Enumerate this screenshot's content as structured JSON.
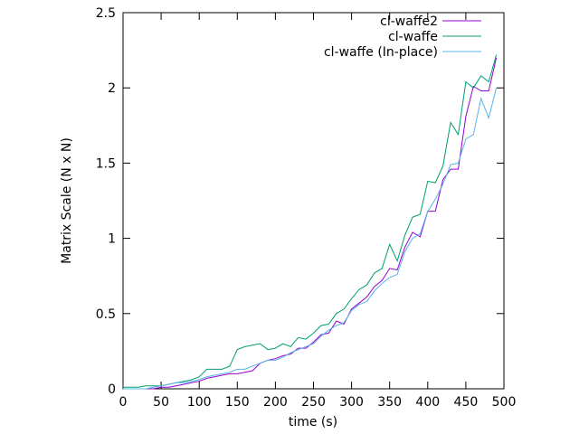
{
  "chart_data": {
    "type": "line",
    "title": "",
    "xlabel": "time (s)",
    "ylabel": "Matrix Scale (N x N)",
    "xlim": [
      0,
      500
    ],
    "ylim": [
      0,
      2.5
    ],
    "xticks": [
      0,
      50,
      100,
      150,
      200,
      250,
      300,
      350,
      400,
      450,
      500
    ],
    "yticks": [
      0,
      0.5,
      1,
      1.5,
      2,
      2.5
    ],
    "xtick_labels": [
      "0",
      "50",
      "100",
      "150",
      "200",
      "250",
      "300",
      "350",
      "400",
      "450",
      "500"
    ],
    "ytick_labels": [
      "0",
      "0.5",
      "1",
      "1.5",
      "2",
      "2.5"
    ],
    "grid": false,
    "legend_position": "top-right",
    "series": [
      {
        "name": "cl-waffe2",
        "color": "#9400d3",
        "x": [
          0,
          10,
          20,
          30,
          40,
          50,
          60,
          70,
          80,
          90,
          100,
          110,
          120,
          130,
          140,
          150,
          160,
          170,
          180,
          190,
          200,
          210,
          220,
          230,
          240,
          250,
          260,
          270,
          280,
          290,
          300,
          310,
          320,
          330,
          340,
          350,
          360,
          370,
          380,
          390,
          400,
          410,
          420,
          430,
          440,
          450,
          460,
          470,
          480,
          490
        ],
        "y": [
          0.0,
          0.0,
          0.0,
          0.0,
          0.0,
          0.01,
          0.01,
          0.02,
          0.03,
          0.04,
          0.05,
          0.07,
          0.08,
          0.09,
          0.1,
          0.1,
          0.11,
          0.12,
          0.17,
          0.19,
          0.2,
          0.22,
          0.23,
          0.27,
          0.27,
          0.31,
          0.36,
          0.37,
          0.45,
          0.43,
          0.53,
          0.57,
          0.61,
          0.68,
          0.72,
          0.8,
          0.79,
          0.94,
          1.04,
          1.01,
          1.18,
          1.18,
          1.39,
          1.46,
          1.46,
          1.81,
          2.01,
          1.98,
          1.98,
          2.2
        ]
      },
      {
        "name": "cl-waffe",
        "color": "#009e73",
        "x": [
          0,
          10,
          20,
          30,
          40,
          50,
          60,
          70,
          80,
          90,
          100,
          110,
          120,
          130,
          140,
          150,
          160,
          170,
          180,
          190,
          200,
          210,
          220,
          230,
          240,
          250,
          260,
          270,
          280,
          290,
          300,
          310,
          320,
          330,
          340,
          350,
          360,
          370,
          380,
          390,
          400,
          410,
          420,
          430,
          440,
          450,
          460,
          470,
          480,
          490
        ],
        "y": [
          0.01,
          0.01,
          0.01,
          0.02,
          0.02,
          0.02,
          0.03,
          0.04,
          0.05,
          0.06,
          0.08,
          0.13,
          0.13,
          0.13,
          0.15,
          0.26,
          0.28,
          0.29,
          0.3,
          0.26,
          0.27,
          0.3,
          0.28,
          0.34,
          0.33,
          0.37,
          0.42,
          0.43,
          0.5,
          0.53,
          0.6,
          0.66,
          0.69,
          0.77,
          0.8,
          0.96,
          0.85,
          1.02,
          1.14,
          1.16,
          1.38,
          1.37,
          1.48,
          1.77,
          1.69,
          2.04,
          2.0,
          2.08,
          2.04,
          2.22
        ]
      },
      {
        "name": "cl-waffe (In-place)",
        "color": "#56b4e9",
        "x": [
          0,
          10,
          20,
          30,
          40,
          50,
          60,
          70,
          80,
          90,
          100,
          110,
          120,
          130,
          140,
          150,
          160,
          170,
          180,
          190,
          200,
          210,
          220,
          230,
          240,
          250,
          260,
          270,
          280,
          290,
          300,
          310,
          320,
          330,
          340,
          350,
          360,
          370,
          380,
          390,
          400,
          410,
          420,
          430,
          440,
          450,
          460,
          470,
          480,
          490
        ],
        "y": [
          0.0,
          0.0,
          0.0,
          0.0,
          0.01,
          0.02,
          0.03,
          0.04,
          0.04,
          0.05,
          0.06,
          0.08,
          0.09,
          0.1,
          0.11,
          0.13,
          0.13,
          0.15,
          0.17,
          0.19,
          0.19,
          0.21,
          0.24,
          0.26,
          0.28,
          0.3,
          0.35,
          0.39,
          0.42,
          0.44,
          0.52,
          0.56,
          0.58,
          0.65,
          0.7,
          0.74,
          0.76,
          0.91,
          1.0,
          1.03,
          1.18,
          1.26,
          1.36,
          1.49,
          1.5,
          1.66,
          1.69,
          1.93,
          1.8,
          2.0
        ]
      }
    ]
  }
}
